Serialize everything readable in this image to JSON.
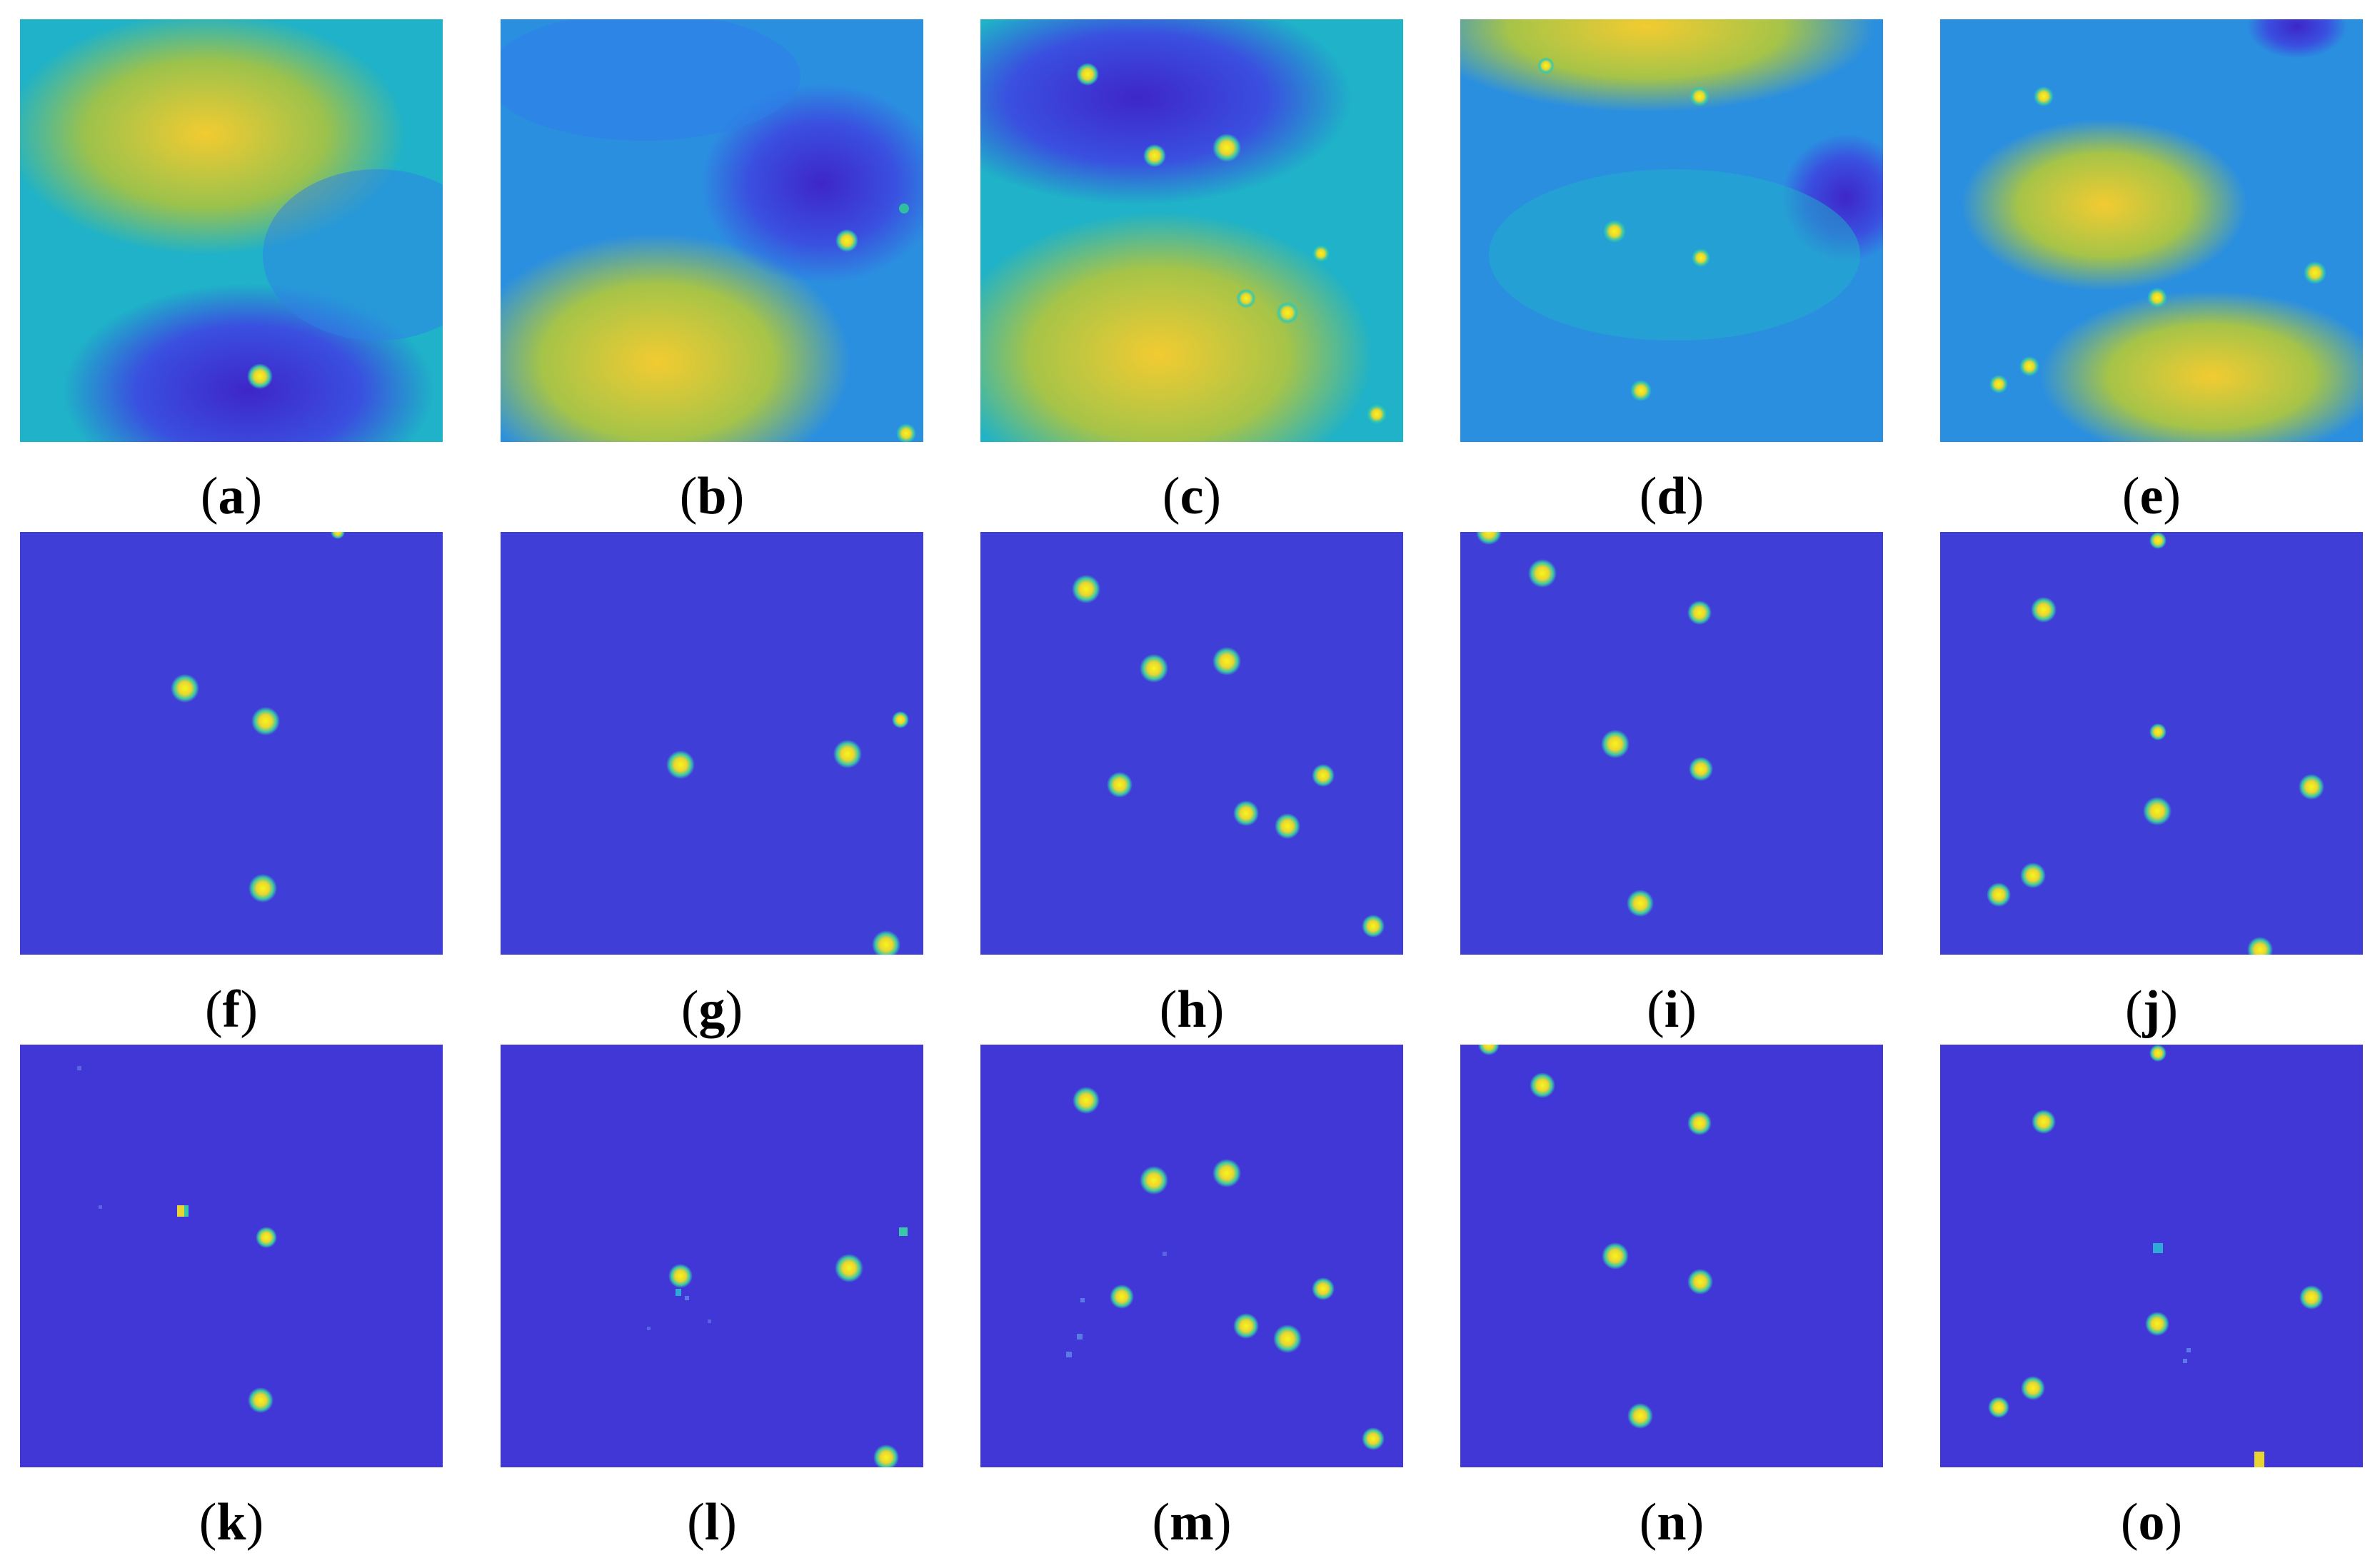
{
  "colors": {
    "background_low": "#3e26c9",
    "background_mid_blue": "#2f7fe8",
    "background_cyan": "#1fb2c8",
    "background_green": "#6fbf6a",
    "background_yellow": "#f2cb31",
    "spot_core": "#f9f51a",
    "flat_field": "#3f3fd8"
  },
  "panels": [
    {
      "caption_letter": "a",
      "row": "raw-noisy-background"
    },
    {
      "caption_letter": "b",
      "row": "raw-noisy-background"
    },
    {
      "caption_letter": "c",
      "row": "raw-noisy-background"
    },
    {
      "caption_letter": "d",
      "row": "raw-noisy-background"
    },
    {
      "caption_letter": "e",
      "row": "raw-noisy-background"
    },
    {
      "caption_letter": "f",
      "row": "background-removed"
    },
    {
      "caption_letter": "g",
      "row": "background-removed"
    },
    {
      "caption_letter": "h",
      "row": "background-removed"
    },
    {
      "caption_letter": "i",
      "row": "background-removed"
    },
    {
      "caption_letter": "j",
      "row": "background-removed"
    },
    {
      "caption_letter": "k",
      "row": "reconstructed"
    },
    {
      "caption_letter": "l",
      "row": "reconstructed"
    },
    {
      "caption_letter": "m",
      "row": "reconstructed"
    },
    {
      "caption_letter": "n",
      "row": "reconstructed"
    },
    {
      "caption_letter": "o",
      "row": "reconstructed"
    }
  ]
}
